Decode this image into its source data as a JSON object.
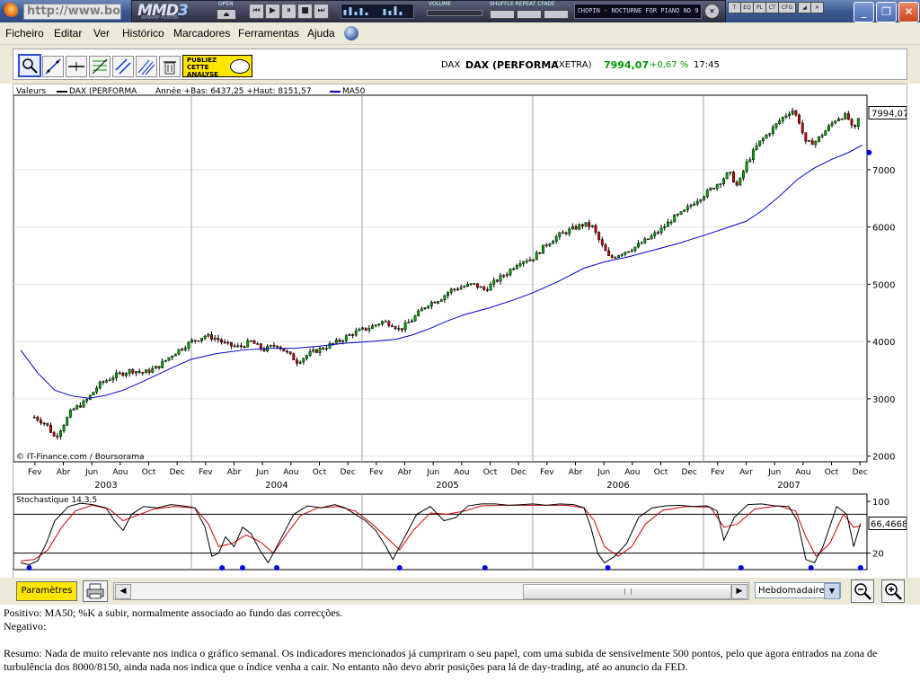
{
  "browser": {
    "address": "http://www.bou",
    "window_buttons": [
      "_",
      "❐",
      "✕"
    ]
  },
  "winamp": {
    "logo": "MMD",
    "logo_num": "3",
    "subtitle": "WINAMP-PLAYER",
    "open_label": "OPEN",
    "volume_label": "VOLUME",
    "modes_label": "SHUFFLE REPEAT CFADE",
    "track": "CHOPIN - NOCTURNE FOR PIANO NO 9",
    "mini_buttons": [
      "T",
      "EQ",
      "PL",
      "CT",
      "CFG"
    ]
  },
  "menu": [
    "Ficheiro",
    "Editar",
    "Ver",
    "Histórico",
    "Marcadores",
    "Ferramentas",
    "Ajuda"
  ],
  "toolbar": {
    "tools": [
      "zoom-tool-icon",
      "trendline-icon",
      "horizontal-line-icon",
      "fibonacci-icon",
      "channel-icon",
      "parallel-lines-icon",
      "trash-icon"
    ],
    "publiez_lines": [
      "PUBLIEZ",
      "CETTE",
      "ANALYSE"
    ],
    "quote_code": "DAX",
    "quote_name": "DAX (PERFORMA",
    "quote_exchange": "(XETRA)",
    "quote_price": "7994,07",
    "quote_change": "+0,67 %",
    "quote_time": "17:45",
    "colors": {
      "price": "#009900",
      "change": "#009900"
    }
  },
  "chart_data": [
    {
      "type": "candlestick",
      "legend_prefix": "Valeurs",
      "series": [
        {
          "name": "DAX (PERFORMA",
          "color": "#000000"
        },
        {
          "name": "MA50",
          "color": "#0000cc"
        }
      ],
      "range_text": "Année +Bas: 6437,25 +Haut: 8151,57",
      "last_label": "7994,07",
      "ylim": [
        1900,
        8300
      ],
      "yticks": [
        2000,
        3000,
        4000,
        5000,
        6000,
        7000
      ],
      "ytick_labels": [
        "2000",
        "3000",
        "4000",
        "5000",
        "6000",
        "7000"
      ],
      "xlim": [
        2003.0,
        2008.0
      ],
      "month_ticks": [
        "Fev",
        "Abr",
        "Jun",
        "Aou",
        "Oct",
        "Dec",
        "Fev",
        "Abr",
        "Jun",
        "Aou",
        "Oct",
        "Dec",
        "Fev",
        "Abr",
        "Jun",
        "Aou",
        "Oct",
        "Dec",
        "Fev",
        "Abr",
        "Jun",
        "Aou",
        "Oct",
        "Dec",
        "Fev",
        "Avr",
        "Jun",
        "Aou",
        "Oct",
        "Dec"
      ],
      "year_labels": [
        "2003",
        "2004",
        "2005",
        "2006",
        "2007"
      ],
      "year_dividers": [
        2004.0,
        2005.0,
        2006.0,
        2007.0
      ],
      "close_path": [
        [
          2003.08,
          2680
        ],
        [
          2003.15,
          2560
        ],
        [
          2003.2,
          2320
        ],
        [
          2003.24,
          2500
        ],
        [
          2003.3,
          2800
        ],
        [
          2003.38,
          2950
        ],
        [
          2003.46,
          3250
        ],
        [
          2003.55,
          3400
        ],
        [
          2003.65,
          3500
        ],
        [
          2003.72,
          3450
        ],
        [
          2003.8,
          3550
        ],
        [
          2003.9,
          3800
        ],
        [
          2004.0,
          4000
        ],
        [
          2004.08,
          4100
        ],
        [
          2004.15,
          4050
        ],
        [
          2004.2,
          3950
        ],
        [
          2004.28,
          3900
        ],
        [
          2004.35,
          4000
        ],
        [
          2004.42,
          3850
        ],
        [
          2004.5,
          3950
        ],
        [
          2004.58,
          3750
        ],
        [
          2004.62,
          3650
        ],
        [
          2004.7,
          3800
        ],
        [
          2004.78,
          3900
        ],
        [
          2004.86,
          4000
        ],
        [
          2004.95,
          4150
        ],
        [
          2005.05,
          4250
        ],
        [
          2005.12,
          4350
        ],
        [
          2005.18,
          4300
        ],
        [
          2005.22,
          4200
        ],
        [
          2005.3,
          4400
        ],
        [
          2005.38,
          4650
        ],
        [
          2005.46,
          4750
        ],
        [
          2005.52,
          4900
        ],
        [
          2005.58,
          4950
        ],
        [
          2005.65,
          5000
        ],
        [
          2005.72,
          4900
        ],
        [
          2005.78,
          5050
        ],
        [
          2005.85,
          5200
        ],
        [
          2005.92,
          5400
        ],
        [
          2006.0,
          5450
        ],
        [
          2006.08,
          5700
        ],
        [
          2006.15,
          5850
        ],
        [
          2006.22,
          5950
        ],
        [
          2006.3,
          6050
        ],
        [
          2006.35,
          6000
        ],
        [
          2006.4,
          5700
        ],
        [
          2006.45,
          5450
        ],
        [
          2006.52,
          5550
        ],
        [
          2006.6,
          5650
        ],
        [
          2006.68,
          5800
        ],
        [
          2006.75,
          5950
        ],
        [
          2006.82,
          6150
        ],
        [
          2006.88,
          6250
        ],
        [
          2006.95,
          6450
        ],
        [
          2007.02,
          6600
        ],
        [
          2007.1,
          6800
        ],
        [
          2007.15,
          6950
        ],
        [
          2007.2,
          6700
        ],
        [
          2007.25,
          7100
        ],
        [
          2007.32,
          7450
        ],
        [
          2007.4,
          7700
        ],
        [
          2007.46,
          7900
        ],
        [
          2007.52,
          8050
        ],
        [
          2007.56,
          7850
        ],
        [
          2007.6,
          7450
        ],
        [
          2007.66,
          7500
        ],
        [
          2007.72,
          7700
        ],
        [
          2007.78,
          7900
        ],
        [
          2007.84,
          7950
        ],
        [
          2007.88,
          7650
        ],
        [
          2007.92,
          7994
        ]
      ],
      "ma50_path": [
        [
          2003.0,
          3850
        ],
        [
          2003.1,
          3450
        ],
        [
          2003.2,
          3150
        ],
        [
          2003.3,
          3050
        ],
        [
          2003.4,
          3010
        ],
        [
          2003.5,
          3060
        ],
        [
          2003.6,
          3150
        ],
        [
          2003.7,
          3280
        ],
        [
          2003.8,
          3420
        ],
        [
          2003.9,
          3560
        ],
        [
          2004.0,
          3690
        ],
        [
          2004.15,
          3790
        ],
        [
          2004.3,
          3850
        ],
        [
          2004.45,
          3880
        ],
        [
          2004.6,
          3880
        ],
        [
          2004.75,
          3920
        ],
        [
          2004.9,
          3970
        ],
        [
          2005.05,
          4000
        ],
        [
          2005.2,
          4040
        ],
        [
          2005.3,
          4120
        ],
        [
          2005.4,
          4230
        ],
        [
          2005.5,
          4360
        ],
        [
          2005.6,
          4470
        ],
        [
          2005.75,
          4590
        ],
        [
          2005.9,
          4740
        ],
        [
          2006.0,
          4850
        ],
        [
          2006.15,
          5050
        ],
        [
          2006.3,
          5280
        ],
        [
          2006.42,
          5390
        ],
        [
          2006.55,
          5470
        ],
        [
          2006.7,
          5590
        ],
        [
          2006.85,
          5710
        ],
        [
          2007.0,
          5850
        ],
        [
          2007.15,
          6000
        ],
        [
          2007.25,
          6100
        ],
        [
          2007.35,
          6300
        ],
        [
          2007.45,
          6550
        ],
        [
          2007.55,
          6830
        ],
        [
          2007.65,
          7030
        ],
        [
          2007.75,
          7180
        ],
        [
          2007.85,
          7300
        ],
        [
          2007.93,
          7430
        ]
      ],
      "source_label": "© IT-Finance.com / Boursorama"
    },
    {
      "type": "line",
      "title": "Stochastique 14,3,5",
      "ylim": [
        0,
        100
      ],
      "yticks": [
        100,
        20
      ],
      "ytick_labels": [
        "100",
        "20"
      ],
      "last_label": "66,4668",
      "k_path": [
        [
          2003.0,
          5
        ],
        [
          2003.05,
          2
        ],
        [
          2003.1,
          8
        ],
        [
          2003.15,
          35
        ],
        [
          2003.2,
          70
        ],
        [
          2003.28,
          92
        ],
        [
          2003.35,
          97
        ],
        [
          2003.42,
          95
        ],
        [
          2003.5,
          90
        ],
        [
          2003.55,
          70
        ],
        [
          2003.6,
          55
        ],
        [
          2003.65,
          80
        ],
        [
          2003.72,
          92
        ],
        [
          2003.8,
          90
        ],
        [
          2003.88,
          95
        ],
        [
          2003.95,
          93
        ],
        [
          2004.02,
          90
        ],
        [
          2004.08,
          60
        ],
        [
          2004.12,
          15
        ],
        [
          2004.16,
          20
        ],
        [
          2004.2,
          45
        ],
        [
          2004.25,
          30
        ],
        [
          2004.3,
          60
        ],
        [
          2004.35,
          50
        ],
        [
          2004.4,
          25
        ],
        [
          2004.45,
          5
        ],
        [
          2004.52,
          40
        ],
        [
          2004.6,
          80
        ],
        [
          2004.68,
          93
        ],
        [
          2004.76,
          90
        ],
        [
          2004.84,
          95
        ],
        [
          2004.9,
          90
        ],
        [
          2004.96,
          80
        ],
        [
          2005.02,
          70
        ],
        [
          2005.08,
          55
        ],
        [
          2005.14,
          30
        ],
        [
          2005.18,
          10
        ],
        [
          2005.25,
          45
        ],
        [
          2005.32,
          80
        ],
        [
          2005.4,
          92
        ],
        [
          2005.48,
          70
        ],
        [
          2005.55,
          75
        ],
        [
          2005.62,
          93
        ],
        [
          2005.7,
          96
        ],
        [
          2005.78,
          96
        ],
        [
          2005.86,
          94
        ],
        [
          2005.94,
          95
        ],
        [
          2006.0,
          96
        ],
        [
          2006.08,
          94
        ],
        [
          2006.16,
          96
        ],
        [
          2006.24,
          95
        ],
        [
          2006.3,
          90
        ],
        [
          2006.34,
          60
        ],
        [
          2006.38,
          20
        ],
        [
          2006.42,
          5
        ],
        [
          2006.48,
          15
        ],
        [
          2006.55,
          35
        ],
        [
          2006.62,
          75
        ],
        [
          2006.7,
          90
        ],
        [
          2006.78,
          93
        ],
        [
          2006.86,
          94
        ],
        [
          2006.94,
          92
        ],
        [
          2007.02,
          93
        ],
        [
          2007.08,
          85
        ],
        [
          2007.12,
          40
        ],
        [
          2007.18,
          75
        ],
        [
          2007.26,
          95
        ],
        [
          2007.34,
          96
        ],
        [
          2007.42,
          93
        ],
        [
          2007.5,
          92
        ],
        [
          2007.55,
          70
        ],
        [
          2007.6,
          10
        ],
        [
          2007.65,
          5
        ],
        [
          2007.7,
          30
        ],
        [
          2007.78,
          92
        ],
        [
          2007.84,
          80
        ],
        [
          2007.88,
          30
        ],
        [
          2007.92,
          66
        ]
      ],
      "d_path": [
        [
          2003.0,
          8
        ],
        [
          2003.08,
          10
        ],
        [
          2003.16,
          25
        ],
        [
          2003.24,
          60
        ],
        [
          2003.32,
          85
        ],
        [
          2003.42,
          94
        ],
        [
          2003.52,
          88
        ],
        [
          2003.6,
          70
        ],
        [
          2003.68,
          78
        ],
        [
          2003.78,
          88
        ],
        [
          2003.9,
          92
        ],
        [
          2004.02,
          90
        ],
        [
          2004.1,
          65
        ],
        [
          2004.16,
          30
        ],
        [
          2004.24,
          35
        ],
        [
          2004.32,
          48
        ],
        [
          2004.4,
          38
        ],
        [
          2004.48,
          20
        ],
        [
          2004.56,
          50
        ],
        [
          2004.64,
          78
        ],
        [
          2004.74,
          90
        ],
        [
          2004.86,
          92
        ],
        [
          2004.96,
          85
        ],
        [
          2005.06,
          65
        ],
        [
          2005.14,
          45
        ],
        [
          2005.22,
          25
        ],
        [
          2005.3,
          55
        ],
        [
          2005.4,
          82
        ],
        [
          2005.5,
          80
        ],
        [
          2005.6,
          85
        ],
        [
          2005.7,
          93
        ],
        [
          2005.85,
          94
        ],
        [
          2006.0,
          94
        ],
        [
          2006.2,
          94
        ],
        [
          2006.3,
          90
        ],
        [
          2006.36,
          70
        ],
        [
          2006.42,
          30
        ],
        [
          2006.5,
          15
        ],
        [
          2006.58,
          30
        ],
        [
          2006.66,
          65
        ],
        [
          2006.76,
          86
        ],
        [
          2006.9,
          92
        ],
        [
          2007.04,
          91
        ],
        [
          2007.12,
          60
        ],
        [
          2007.2,
          65
        ],
        [
          2007.3,
          88
        ],
        [
          2007.44,
          93
        ],
        [
          2007.54,
          85
        ],
        [
          2007.6,
          45
        ],
        [
          2007.66,
          15
        ],
        [
          2007.74,
          35
        ],
        [
          2007.82,
          80
        ],
        [
          2007.88,
          60
        ],
        [
          2007.92,
          62
        ]
      ],
      "signal_dots": [
        2003.05,
        2004.18,
        2004.3,
        2004.5,
        2005.22,
        2005.72,
        2006.44,
        2007.22,
        2007.63,
        2007.92
      ],
      "colors": {
        "k": "#000000",
        "d": "#cc0000",
        "dots": "#0000ee"
      }
    }
  ],
  "bottom": {
    "params_label": "Paramètres",
    "period": "Hebdomadaire",
    "scroll_left": "◀",
    "scroll_right": "▶",
    "dropdown_arrow": "▼"
  },
  "text": {
    "positivo": "Positivo: MA50; %K a subir, normalmente associado ao fundo das correcções.",
    "negativo": "Negativo:",
    "resumo": "Resumo: Nada de muito relevante nos indica o gráfico semanal. Os indicadores mencionados já cumpriram o seu papel, com uma subida de sensivelmente 500 pontos, pelo que agora entrados na zona de turbulência dos 8000/8150, ainda nada nos indica que o índice venha a cair. No entanto não devo abrir posições para lá de day-trading, até ao anuncio da FED."
  }
}
